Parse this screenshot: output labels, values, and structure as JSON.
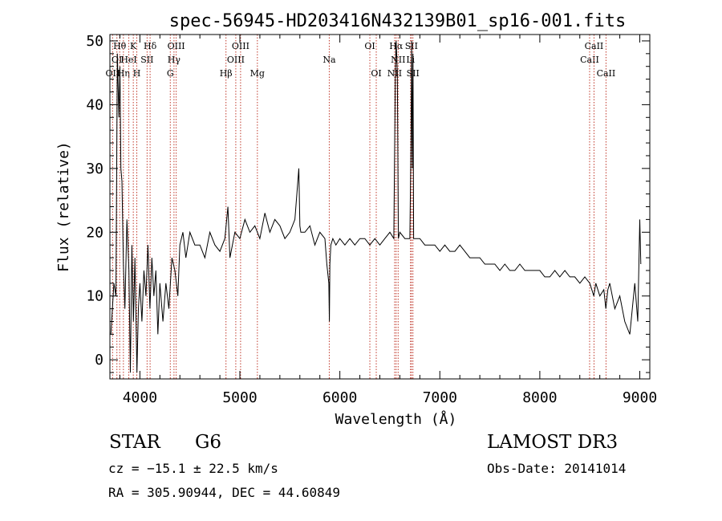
{
  "chart_data": {
    "type": "line",
    "title": "spec-56945-HD203416N432139B01_sp16-001.fits",
    "xlabel": "Wavelength (Å)",
    "ylabel": "Flux (relative)",
    "xlim": [
      3700,
      9100
    ],
    "ylim": [
      -3,
      51
    ],
    "xticks": [
      4000,
      5000,
      6000,
      7000,
      8000,
      9000
    ],
    "yticks": [
      0,
      10,
      20,
      30,
      40,
      50
    ],
    "series": [
      {
        "name": "flux",
        "x": [
          3710,
          3740,
          3760,
          3775,
          3790,
          3800,
          3810,
          3820,
          3835,
          3850,
          3870,
          3890,
          3905,
          3920,
          3935,
          3950,
          3970,
          3985,
          4000,
          4020,
          4040,
          4060,
          4080,
          4100,
          4120,
          4140,
          4160,
          4180,
          4200,
          4230,
          4260,
          4290,
          4320,
          4350,
          4380,
          4400,
          4430,
          4460,
          4500,
          4550,
          4600,
          4650,
          4700,
          4750,
          4800,
          4850,
          4880,
          4900,
          4950,
          5000,
          5050,
          5100,
          5150,
          5200,
          5250,
          5300,
          5350,
          5400,
          5450,
          5500,
          5550,
          5590,
          5600,
          5610,
          5650,
          5700,
          5750,
          5800,
          5850,
          5870,
          5890,
          5895,
          5900,
          5910,
          5930,
          5960,
          6000,
          6050,
          6100,
          6150,
          6200,
          6250,
          6300,
          6350,
          6400,
          6450,
          6500,
          6540,
          6555,
          6563,
          6575,
          6585,
          6600,
          6650,
          6700,
          6712,
          6718,
          6725,
          6731,
          6738,
          6760,
          6800,
          6850,
          6900,
          6950,
          7000,
          7050,
          7100,
          7150,
          7200,
          7250,
          7300,
          7350,
          7400,
          7450,
          7500,
          7550,
          7600,
          7650,
          7700,
          7750,
          7800,
          7850,
          7900,
          7950,
          8000,
          8050,
          8100,
          8150,
          8200,
          8250,
          8300,
          8350,
          8400,
          8450,
          8500,
          8540,
          8560,
          8600,
          8640,
          8660,
          8680,
          8700,
          8750,
          8800,
          8850,
          8900,
          8950,
          8980,
          9000,
          9010
        ],
        "values": [
          4,
          12,
          10,
          48,
          38,
          46,
          30,
          28,
          15,
          8,
          22,
          14,
          -2,
          18,
          6,
          16,
          -2,
          8,
          12,
          6,
          14,
          10,
          18,
          8,
          16,
          10,
          14,
          4,
          12,
          6,
          12,
          8,
          16,
          14,
          10,
          18,
          20,
          16,
          20,
          18,
          18,
          16,
          20,
          18,
          17,
          19,
          24,
          16,
          20,
          19,
          22,
          20,
          21,
          19,
          23,
          20,
          22,
          21,
          19,
          20,
          22,
          30,
          21,
          20,
          20,
          21,
          18,
          20,
          19,
          15,
          12,
          6,
          15,
          18,
          19,
          18,
          19,
          18,
          19,
          18,
          19,
          19,
          18,
          19,
          18,
          19,
          20,
          19,
          45,
          50,
          45,
          19,
          20,
          19,
          19,
          35,
          50,
          30,
          48,
          19,
          19,
          19,
          18,
          18,
          18,
          17,
          18,
          17,
          17,
          18,
          17,
          16,
          16,
          16,
          15,
          15,
          15,
          14,
          15,
          14,
          14,
          15,
          14,
          14,
          14,
          14,
          13,
          13,
          14,
          13,
          14,
          13,
          13,
          12,
          13,
          12,
          10,
          12,
          10,
          11,
          8,
          11,
          12,
          8,
          10,
          6,
          4,
          12,
          6,
          22,
          15
        ]
      }
    ],
    "lines": [
      {
        "name": "OII",
        "w": 3727,
        "row": 2
      },
      {
        "name": "OI",
        "w": 3770,
        "row": 1
      },
      {
        "name": "Hθ",
        "w": 3798,
        "row": 0
      },
      {
        "name": "Hη",
        "w": 3835,
        "row": 2
      },
      {
        "name": "HeI",
        "w": 3889,
        "row": 1
      },
      {
        "name": "K",
        "w": 3934,
        "row": 0
      },
      {
        "name": "H",
        "w": 3969,
        "row": 2
      },
      {
        "name": "SII",
        "w": 4072,
        "row": 1
      },
      {
        "name": "Hδ",
        "w": 4102,
        "row": 0
      },
      {
        "name": "G",
        "w": 4304,
        "row": 2
      },
      {
        "name": "Hγ",
        "w": 4341,
        "row": 1
      },
      {
        "name": "OIII",
        "w": 4363,
        "row": 0
      },
      {
        "name": "Hβ",
        "w": 4861,
        "row": 2
      },
      {
        "name": "OIII",
        "w": 4959,
        "row": 1
      },
      {
        "name": "OIII",
        "w": 5007,
        "row": 0
      },
      {
        "name": "Mg",
        "w": 5175,
        "row": 2
      },
      {
        "name": "Na",
        "w": 5894,
        "row": 1
      },
      {
        "name": "OI",
        "w": 6300,
        "row": 0
      },
      {
        "name": "OI",
        "w": 6364,
        "row": 2
      },
      {
        "name": "NII",
        "w": 6548,
        "row": 2
      },
      {
        "name": "Hα",
        "w": 6563,
        "row": 0
      },
      {
        "name": "NII",
        "w": 6583,
        "row": 1
      },
      {
        "name": "Li",
        "w": 6707,
        "row": 1
      },
      {
        "name": "SII",
        "w": 6716,
        "row": 0
      },
      {
        "name": "SII",
        "w": 6731,
        "row": 2
      },
      {
        "name": "CaII",
        "w": 8498,
        "row": 1
      },
      {
        "name": "CaII",
        "w": 8542,
        "row": 0
      },
      {
        "name": "CaII",
        "w": 8662,
        "row": 2
      }
    ]
  },
  "info": {
    "class": "STAR",
    "subclass": "G6",
    "survey": "LAMOST DR3",
    "redshift": "cz = −15.1 ± 22.5 km/s",
    "obsdate": "Obs-Date: 20141014",
    "coords": "RA = 305.90944, DEC =  44.60849"
  },
  "colors": {
    "line_marker": "#c0392b",
    "spectrum": "#000000",
    "axes": "#000000"
  }
}
